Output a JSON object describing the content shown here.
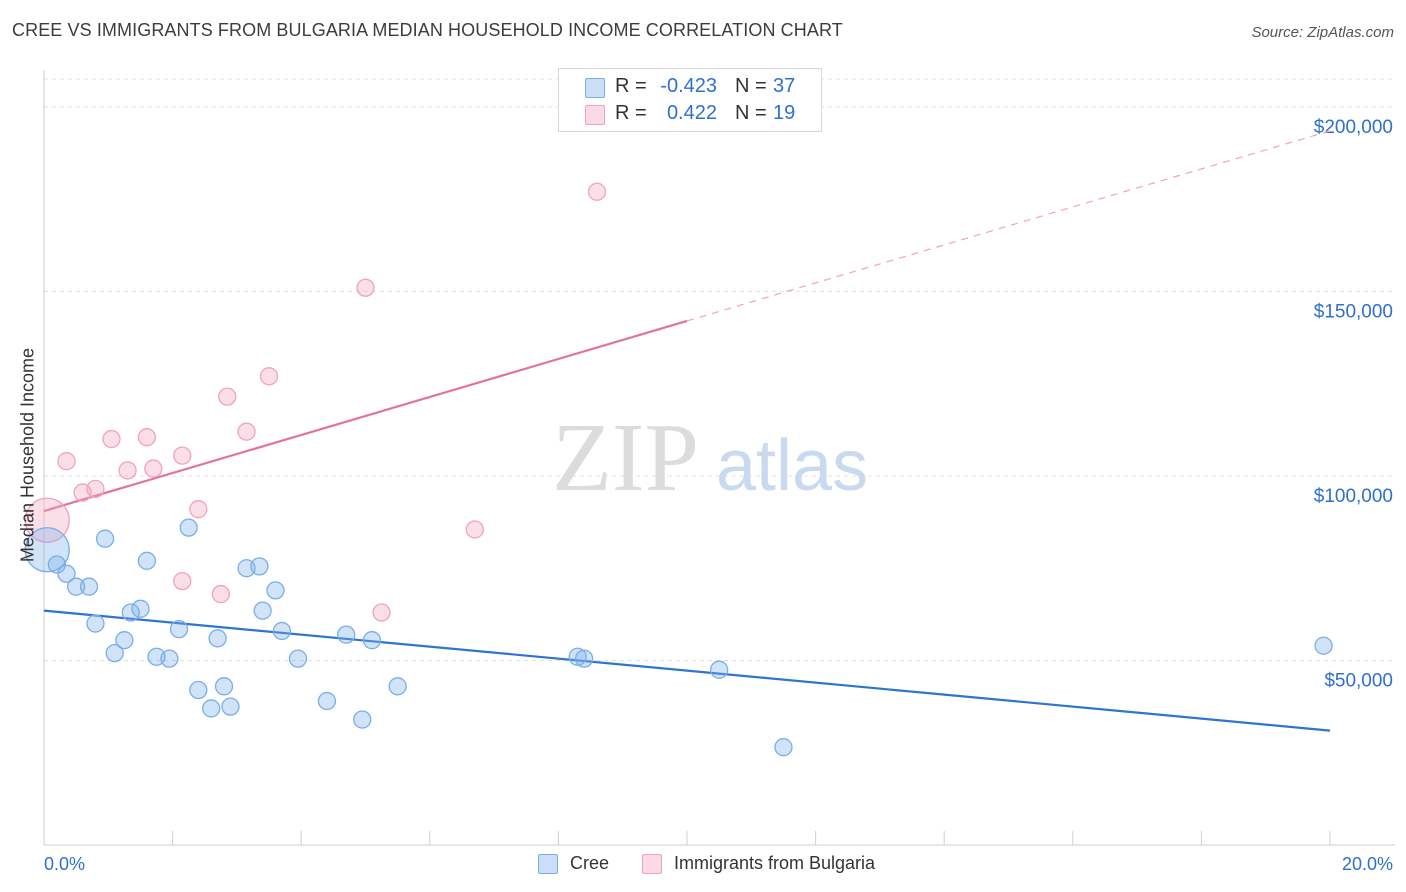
{
  "title": "CREE VS IMMIGRANTS FROM BULGARIA MEDIAN HOUSEHOLD INCOME CORRELATION CHART",
  "source": "Source: ZipAtlas.com",
  "watermark": {
    "zip": "ZIP",
    "atlas": "atlas"
  },
  "legend": {
    "r_label": "R =",
    "n_label": "N =",
    "rows": [
      {
        "r": "-0.423",
        "n": "37"
      },
      {
        "r": "0.422",
        "n": "19"
      }
    ]
  },
  "colors": {
    "cree": "#7aaee8",
    "cree_line": "#2f74d0",
    "bulgaria": "#f2a2bc",
    "bulgaria_line": "#e4739a",
    "tick_label": "#2f6fd0",
    "grid": "#e0e0e0"
  },
  "chart_data": {
    "type": "scatter",
    "title": "CREE VS IMMIGRANTS FROM BULGARIA MEDIAN HOUSEHOLD INCOME CORRELATION CHART",
    "xlabel": "",
    "ylabel": "Median Household Income",
    "xlim": [
      0,
      20
    ],
    "ylim": [
      0,
      210000
    ],
    "x_tick_labels": [
      "0.0%",
      "20.0%"
    ],
    "y_ticks": [
      50000,
      100000,
      150000,
      200000
    ],
    "y_tick_labels": [
      "$50,000",
      "$100,000",
      "$150,000",
      "$200,000"
    ],
    "grid": true,
    "legend_position": "top-center",
    "series": [
      {
        "name": "Cree",
        "r": -0.423,
        "n": 37,
        "trend": {
          "x0": 0,
          "y0": 63500,
          "x1": 20,
          "y1": 31000
        },
        "points": [
          [
            0.05,
            80000
          ],
          [
            0.2,
            76000
          ],
          [
            0.35,
            73500
          ],
          [
            0.5,
            70000
          ],
          [
            0.7,
            70000
          ],
          [
            0.8,
            60000
          ],
          [
            0.95,
            83000
          ],
          [
            1.1,
            52000
          ],
          [
            1.25,
            55500
          ],
          [
            1.35,
            63000
          ],
          [
            1.5,
            64000
          ],
          [
            1.6,
            77000
          ],
          [
            1.75,
            51000
          ],
          [
            1.95,
            50500
          ],
          [
            2.1,
            58500
          ],
          [
            2.25,
            86000
          ],
          [
            2.4,
            42000
          ],
          [
            2.6,
            37000
          ],
          [
            2.7,
            56000
          ],
          [
            2.8,
            43000
          ],
          [
            2.9,
            37500
          ],
          [
            3.15,
            75000
          ],
          [
            3.35,
            75500
          ],
          [
            3.4,
            63500
          ],
          [
            3.6,
            69000
          ],
          [
            3.7,
            58000
          ],
          [
            3.95,
            50500
          ],
          [
            4.4,
            39000
          ],
          [
            4.7,
            57000
          ],
          [
            4.95,
            34000
          ],
          [
            5.1,
            55500
          ],
          [
            5.5,
            43000
          ],
          [
            8.3,
            51000
          ],
          [
            8.4,
            50500
          ],
          [
            10.5,
            47500
          ],
          [
            11.5,
            26500
          ],
          [
            19.9,
            54000
          ]
        ]
      },
      {
        "name": "Immigrants from Bulgaria",
        "r": 0.422,
        "n": 19,
        "trend": {
          "x0": 0,
          "y0": 90500,
          "x1": 10,
          "y1": 142000,
          "dash_x1": 20,
          "dash_y1": 193500
        },
        "points": [
          [
            0.05,
            88000
          ],
          [
            0.35,
            104000
          ],
          [
            0.6,
            95500
          ],
          [
            0.8,
            96500
          ],
          [
            1.05,
            110000
          ],
          [
            1.3,
            101500
          ],
          [
            1.6,
            110500
          ],
          [
            1.7,
            102000
          ],
          [
            2.15,
            71500
          ],
          [
            2.15,
            105500
          ],
          [
            2.4,
            91000
          ],
          [
            2.75,
            68000
          ],
          [
            2.85,
            121500
          ],
          [
            3.15,
            112000
          ],
          [
            3.5,
            127000
          ],
          [
            5.0,
            151000
          ],
          [
            5.25,
            63000
          ],
          [
            6.7,
            85500
          ],
          [
            8.6,
            177000
          ]
        ]
      }
    ]
  }
}
